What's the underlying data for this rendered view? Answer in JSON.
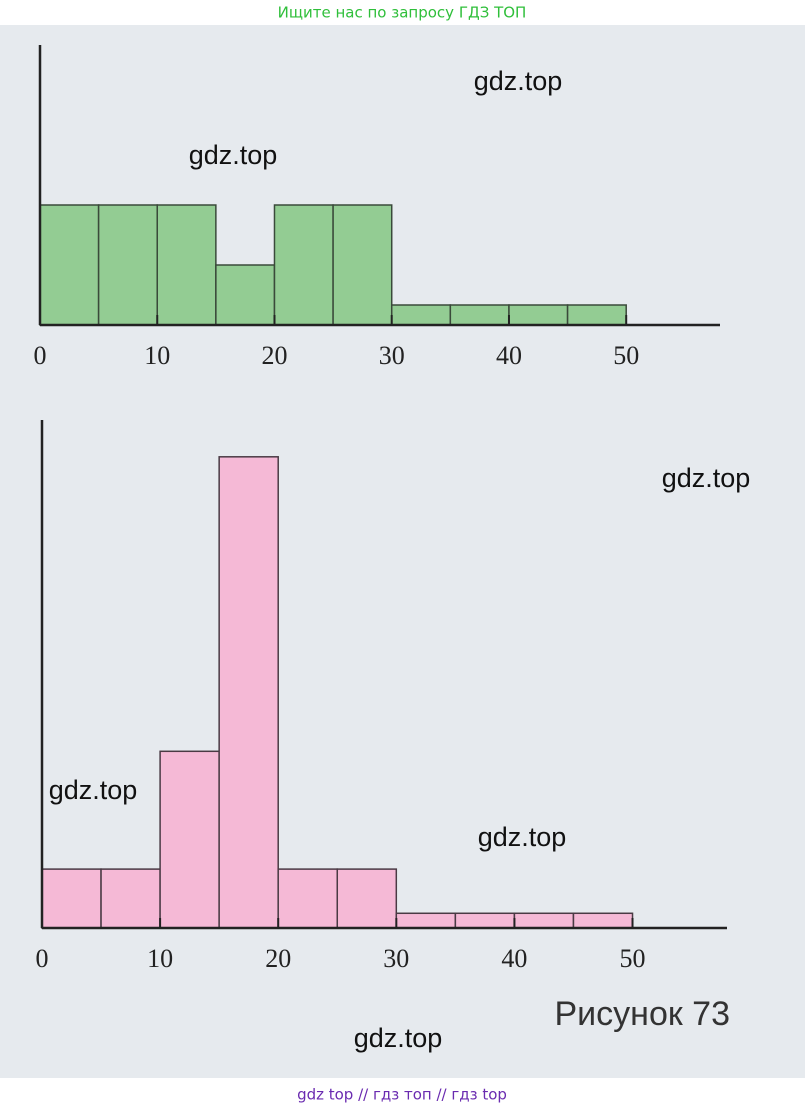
{
  "header": "Ищите нас по запросу ГДЗ ТОП",
  "footer": "gdz top  //  гдз топ  //  гдз top",
  "caption": "Рисунок 73",
  "watermarks": [
    "gdz.top",
    "gdz.top",
    "gdz.top",
    "gdz.top",
    "gdz.top",
    "gdz.top"
  ],
  "chart_data": [
    {
      "type": "histogram",
      "color": "#93cc93",
      "edge_color": "#3a4a3a",
      "bins": [
        0,
        5,
        10,
        15,
        20,
        25,
        30,
        35,
        40,
        45,
        50
      ],
      "values": [
        6,
        6,
        6,
        3,
        6,
        6,
        1,
        1,
        1,
        1
      ],
      "xlim": [
        0,
        58
      ],
      "ylim": [
        0,
        14
      ],
      "xticks": [
        0,
        10,
        20,
        30,
        40,
        50
      ]
    },
    {
      "type": "histogram",
      "color": "#f5b9d6",
      "edge_color": "#4a3a44",
      "bins": [
        0,
        5,
        10,
        15,
        20,
        25,
        30,
        35,
        40,
        45,
        50
      ],
      "values": [
        4,
        4,
        12,
        32,
        4,
        4,
        1,
        1,
        1,
        1
      ],
      "xlim": [
        0,
        58
      ],
      "ylim": [
        0,
        34.5
      ],
      "xticks": [
        0,
        10,
        20,
        30,
        40,
        50
      ]
    }
  ]
}
